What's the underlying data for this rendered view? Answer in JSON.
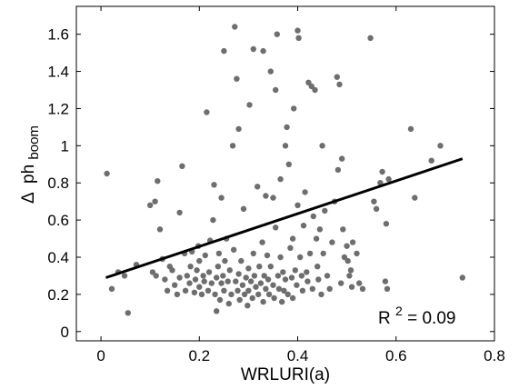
{
  "chart_data": {
    "type": "scatter",
    "title": "",
    "xlabel": "WRLURI(a)",
    "ylabel": {
      "symbol": "Δ",
      "main": "ph",
      "subscript": "boom"
    },
    "xlim": [
      -0.05,
      0.8
    ],
    "ylim": [
      -0.05,
      1.75
    ],
    "x_ticks": [
      0,
      0.2,
      0.4,
      0.6,
      0.8
    ],
    "x_tick_labels": [
      "0",
      "0.2",
      "0.4",
      "0.6",
      "0.8"
    ],
    "y_ticks": [
      0,
      0.2,
      0.4,
      0.6,
      0.8,
      1,
      1.2,
      1.4,
      1.6
    ],
    "y_tick_labels": [
      "0",
      "0.2",
      "0.4",
      "0.6",
      "0.8",
      "1",
      "1.2",
      "1.4",
      "1.6"
    ],
    "grid": false,
    "marker_color": "#6e6e6e",
    "line_color": "#000000",
    "fit_line": {
      "x": [
        0.01,
        0.735
      ],
      "y": [
        0.29,
        0.93
      ]
    },
    "annotation": {
      "base": "R",
      "superscript": "2",
      "rest": " = 0.09"
    },
    "points": [
      [
        0.012,
        0.85
      ],
      [
        0.022,
        0.23
      ],
      [
        0.035,
        0.32
      ],
      [
        0.048,
        0.3
      ],
      [
        0.055,
        0.1
      ],
      [
        0.072,
        0.36
      ],
      [
        0.1,
        0.68
      ],
      [
        0.105,
        0.32
      ],
      [
        0.11,
        0.7
      ],
      [
        0.112,
        0.3
      ],
      [
        0.115,
        0.81
      ],
      [
        0.12,
        0.55
      ],
      [
        0.125,
        0.39
      ],
      [
        0.13,
        0.28
      ],
      [
        0.135,
        0.22
      ],
      [
        0.14,
        0.35
      ],
      [
        0.145,
        0.33
      ],
      [
        0.15,
        0.25
      ],
      [
        0.155,
        0.2
      ],
      [
        0.16,
        0.29
      ],
      [
        0.16,
        0.64
      ],
      [
        0.165,
        0.89
      ],
      [
        0.17,
        0.42
      ],
      [
        0.172,
        0.22
      ],
      [
        0.175,
        0.3
      ],
      [
        0.18,
        0.26
      ],
      [
        0.182,
        0.35
      ],
      [
        0.185,
        0.43
      ],
      [
        0.19,
        0.21
      ],
      [
        0.192,
        0.28
      ],
      [
        0.195,
        0.33
      ],
      [
        0.198,
        0.46
      ],
      [
        0.2,
        0.24
      ],
      [
        0.2,
        0.38
      ],
      [
        0.205,
        0.2
      ],
      [
        0.208,
        0.3
      ],
      [
        0.21,
        0.27
      ],
      [
        0.212,
        0.41
      ],
      [
        0.215,
        1.18
      ],
      [
        0.218,
        0.22
      ],
      [
        0.22,
        0.32
      ],
      [
        0.222,
        0.49
      ],
      [
        0.225,
        0.26
      ],
      [
        0.228,
        0.6
      ],
      [
        0.23,
        0.79
      ],
      [
        0.232,
        0.2
      ],
      [
        0.235,
        0.11
      ],
      [
        0.235,
        0.29
      ],
      [
        0.238,
        0.35
      ],
      [
        0.24,
        0.42
      ],
      [
        0.242,
        0.17
      ],
      [
        0.245,
        0.26
      ],
      [
        0.245,
        0.72
      ],
      [
        0.248,
        0.3
      ],
      [
        0.25,
        1.51
      ],
      [
        0.25,
        0.22
      ],
      [
        0.252,
        0.38
      ],
      [
        0.255,
        0.5
      ],
      [
        0.258,
        0.27
      ],
      [
        0.26,
        0.15
      ],
      [
        0.262,
        0.33
      ],
      [
        0.265,
        0.2
      ],
      [
        0.268,
        1.0
      ],
      [
        0.27,
        0.44
      ],
      [
        0.272,
        1.64
      ],
      [
        0.274,
        0.27
      ],
      [
        0.276,
        1.36
      ],
      [
        0.278,
        0.22
      ],
      [
        0.28,
        1.09
      ],
      [
        0.28,
        0.31
      ],
      [
        0.282,
        0.17
      ],
      [
        0.285,
        0.38
      ],
      [
        0.288,
        0.25
      ],
      [
        0.29,
        0.66
      ],
      [
        0.292,
        0.2
      ],
      [
        0.295,
        0.29
      ],
      [
        0.298,
        0.14
      ],
      [
        0.3,
        0.34
      ],
      [
        0.3,
        0.22
      ],
      [
        0.302,
        1.22
      ],
      [
        0.305,
        0.27
      ],
      [
        0.308,
        0.18
      ],
      [
        0.31,
        1.52
      ],
      [
        0.31,
        0.42
      ],
      [
        0.312,
        0.3
      ],
      [
        0.315,
        0.24
      ],
      [
        0.318,
        0.78
      ],
      [
        0.32,
        0.2
      ],
      [
        0.322,
        0.35
      ],
      [
        0.325,
        0.26
      ],
      [
        0.328,
        0.48
      ],
      [
        0.33,
        1.51
      ],
      [
        0.33,
        0.16
      ],
      [
        0.332,
        0.3
      ],
      [
        0.335,
        0.23
      ],
      [
        0.335,
        0.73
      ],
      [
        0.338,
        0.41
      ],
      [
        0.34,
        0.28
      ],
      [
        0.342,
        0.2
      ],
      [
        0.345,
        1.4
      ],
      [
        0.345,
        0.35
      ],
      [
        0.35,
        0.25
      ],
      [
        0.35,
        0.72
      ],
      [
        0.352,
        0.18
      ],
      [
        0.355,
        1.3
      ],
      [
        0.355,
        0.56
      ],
      [
        0.358,
        1.6
      ],
      [
        0.36,
        0.3
      ],
      [
        0.362,
        0.23
      ],
      [
        0.365,
        0.82
      ],
      [
        0.365,
        0.4
      ],
      [
        0.368,
        0.16
      ],
      [
        0.37,
        0.32
      ],
      [
        0.372,
        0.22
      ],
      [
        0.375,
        1.0
      ],
      [
        0.375,
        0.28
      ],
      [
        0.378,
        1.1
      ],
      [
        0.38,
        0.2
      ],
      [
        0.382,
        0.9
      ],
      [
        0.385,
        0.45
      ],
      [
        0.388,
        0.29
      ],
      [
        0.39,
        0.5
      ],
      [
        0.39,
        0.18
      ],
      [
        0.392,
        1.2
      ],
      [
        0.395,
        0.33
      ],
      [
        0.398,
        0.25
      ],
      [
        0.4,
        1.62
      ],
      [
        0.4,
        0.68
      ],
      [
        0.402,
        1.58
      ],
      [
        0.405,
        0.4
      ],
      [
        0.408,
        0.3
      ],
      [
        0.41,
        0.22
      ],
      [
        0.412,
        0.57
      ],
      [
        0.415,
        0.75
      ],
      [
        0.418,
        0.32
      ],
      [
        0.42,
        0.27
      ],
      [
        0.422,
        1.34
      ],
      [
        0.425,
        0.42
      ],
      [
        0.428,
        1.32
      ],
      [
        0.43,
        0.23
      ],
      [
        0.432,
        0.62
      ],
      [
        0.435,
        1.3
      ],
      [
        0.438,
        0.5
      ],
      [
        0.44,
        0.35
      ],
      [
        0.442,
        0.28
      ],
      [
        0.445,
        0.55
      ],
      [
        0.448,
        0.2
      ],
      [
        0.45,
        1.0
      ],
      [
        0.452,
        0.42
      ],
      [
        0.455,
        0.65
      ],
      [
        0.46,
        0.3
      ],
      [
        0.465,
        0.23
      ],
      [
        0.47,
        0.48
      ],
      [
        0.475,
        0.7
      ],
      [
        0.48,
        1.37
      ],
      [
        0.482,
        0.87
      ],
      [
        0.485,
        1.33
      ],
      [
        0.488,
        0.26
      ],
      [
        0.49,
        0.93
      ],
      [
        0.492,
        0.55
      ],
      [
        0.495,
        0.4
      ],
      [
        0.5,
        0.46
      ],
      [
        0.502,
        0.38
      ],
      [
        0.505,
        0.3
      ],
      [
        0.508,
        0.33
      ],
      [
        0.51,
        0.24
      ],
      [
        0.512,
        0.48
      ],
      [
        0.52,
        0.42
      ],
      [
        0.525,
        0.26
      ],
      [
        0.532,
        0.23
      ],
      [
        0.548,
        1.58
      ],
      [
        0.555,
        0.7
      ],
      [
        0.56,
        0.66
      ],
      [
        0.568,
        0.8
      ],
      [
        0.572,
        0.86
      ],
      [
        0.578,
        0.27
      ],
      [
        0.58,
        0.58
      ],
      [
        0.582,
        0.23
      ],
      [
        0.585,
        0.82
      ],
      [
        0.63,
        1.09
      ],
      [
        0.638,
        0.72
      ],
      [
        0.672,
        0.92
      ],
      [
        0.69,
        1.0
      ],
      [
        0.735,
        0.29
      ]
    ]
  }
}
